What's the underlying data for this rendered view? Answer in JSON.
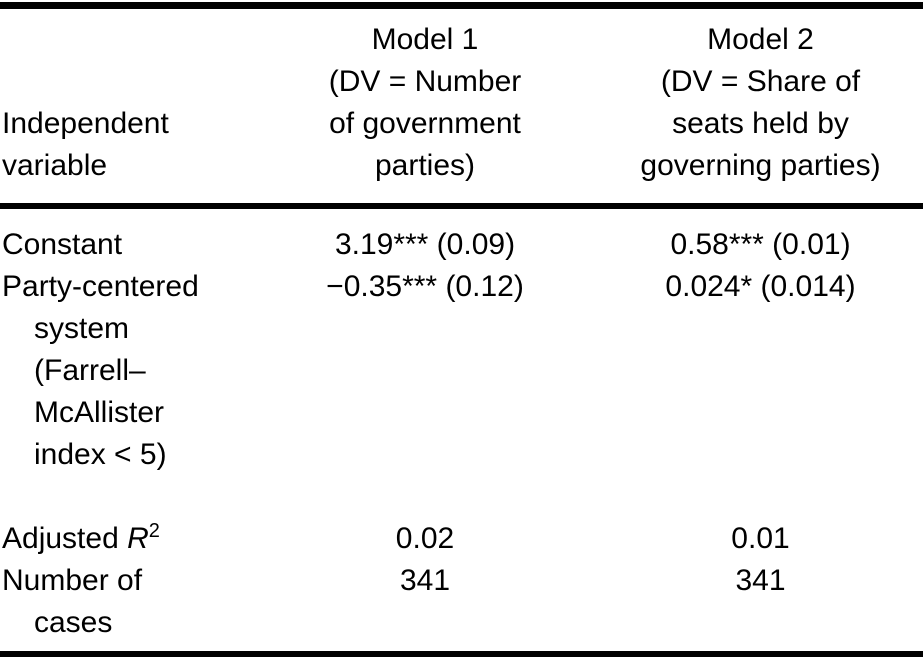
{
  "table": {
    "header": {
      "col1_lines": [
        "Independent",
        "variable"
      ],
      "col2_lines": [
        "Model 1",
        "(DV = Number",
        "of government",
        "parties)"
      ],
      "col3_lines": [
        "Model 2",
        "(DV = Share of",
        "seats held by",
        "governing parties)"
      ]
    },
    "rows": [
      {
        "label_lines": [
          "Constant"
        ],
        "model1": "3.19*** (0.09)",
        "model2": "0.58*** (0.01)"
      },
      {
        "label_lines": [
          "Party-centered",
          "system",
          "(Farrell–",
          "McAllister",
          "index < 5)"
        ],
        "model1": "−0.35*** (0.12)",
        "model2": "0.024* (0.014)"
      }
    ],
    "stats": [
      {
        "label_prefix": "Adjusted ",
        "label_symbol": "R",
        "label_sup": "2",
        "model1": "0.02",
        "model2": "0.01"
      },
      {
        "label_lines": [
          "Number of",
          "cases"
        ],
        "model1": "341",
        "model2": "341"
      }
    ],
    "colors": {
      "text": "#000000",
      "background": "#ffffff",
      "rule": "#000000"
    }
  }
}
